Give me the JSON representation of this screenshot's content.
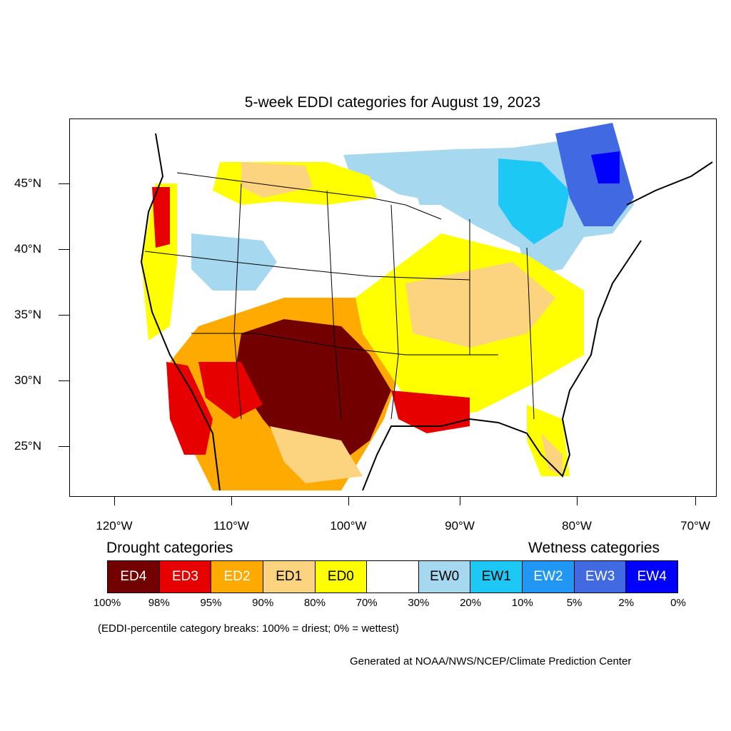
{
  "title": "5-week EDDI categories for August 19, 2023",
  "map": {
    "lat_labels": [
      "45°N",
      "40°N",
      "35°N",
      "30°N",
      "25°N"
    ],
    "lon_labels": [
      "120°W",
      "110°W",
      "100°W",
      "90°W",
      "80°W",
      "70°W"
    ]
  },
  "legend": {
    "drought_heading": "Drought categories",
    "wetness_heading": "Wetness categories",
    "categories": [
      {
        "label": "ED4",
        "color": "#730000",
        "text_color": "#ffffff"
      },
      {
        "label": "ED3",
        "color": "#e60000",
        "text_color": "#ffffff"
      },
      {
        "label": "ED2",
        "color": "#ffaa00",
        "text_color": "#ffffff"
      },
      {
        "label": "ED1",
        "color": "#fcd37f",
        "text_color": "#000000"
      },
      {
        "label": "ED0",
        "color": "#ffff00",
        "text_color": "#000000"
      },
      {
        "label": "",
        "color": "#ffffff",
        "text_color": "#000000"
      },
      {
        "label": "EW0",
        "color": "#a6d8f0",
        "text_color": "#000000"
      },
      {
        "label": "EW1",
        "color": "#1ec8f5",
        "text_color": "#000000"
      },
      {
        "label": "EW2",
        "color": "#2196f3",
        "text_color": "#ffffff"
      },
      {
        "label": "EW3",
        "color": "#4169e1",
        "text_color": "#ffffff"
      },
      {
        "label": "EW4",
        "color": "#0000ff",
        "text_color": "#ffffff"
      }
    ],
    "breaks": [
      "100%",
      "98%",
      "95%",
      "90%",
      "80%",
      "70%",
      "30%",
      "20%",
      "10%",
      "5%",
      "2%",
      "0%"
    ]
  },
  "note": "(EDDI-percentile category breaks: 100% = driest; 0% = wettest)",
  "credit": "Generated at NOAA/NWS/NCEP/Climate Prediction Center"
}
